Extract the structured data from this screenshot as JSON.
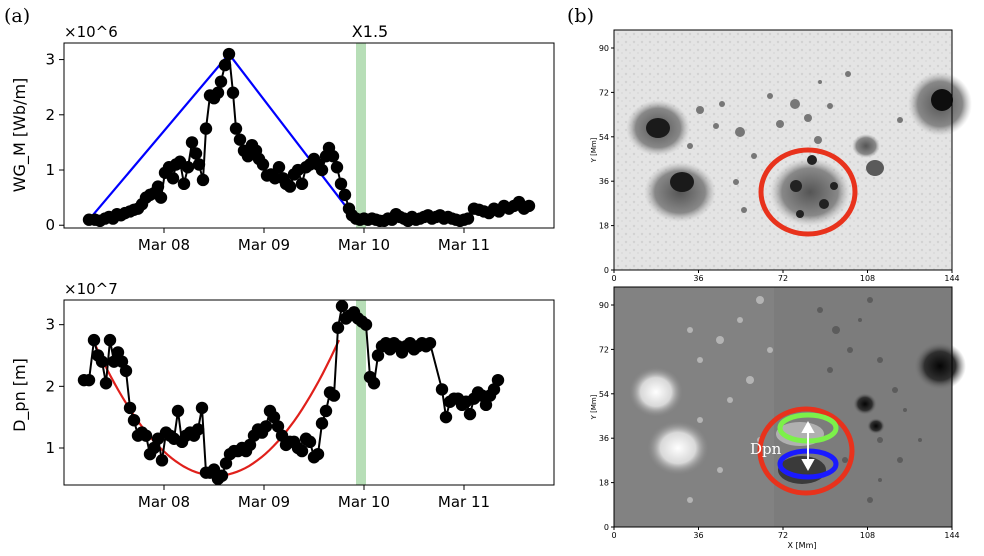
{
  "panels": {
    "a_label": "(a)",
    "b_label": "(b)"
  },
  "colors": {
    "data": "#000000",
    "fit_top": "#0000ff",
    "fit_bottom": "#e0201b",
    "flare_band": "#b7deb7",
    "circle_red": "#e8321c",
    "ellipse_green": "#7cf04a",
    "ellipse_blue": "#1a1aff"
  },
  "chart_data": [
    {
      "type": "scatter",
      "title": "X1.5",
      "ylabel": "WG_M [Wb/m]",
      "y_multiplier": "×10^6",
      "x_ticks": [
        "Mar 08",
        "Mar 09",
        "Mar 10",
        "Mar 11"
      ],
      "x_tick_values": [
        8,
        9,
        10,
        11
      ],
      "y_ticks": [
        "0",
        "1",
        "2",
        "3"
      ],
      "y_tick_values": [
        0,
        1,
        2,
        3
      ],
      "xlim": [
        7.0,
        11.9
      ],
      "ylim": [
        -0.05,
        3.3
      ],
      "flare_band": [
        9.92,
        10.02
      ],
      "series": [
        {
          "points": [
            [
              7.25,
              0.1
            ],
            [
              7.31,
              0.1
            ],
            [
              7.36,
              0.08
            ],
            [
              7.41,
              0.12
            ],
            [
              7.45,
              0.15
            ],
            [
              7.49,
              0.12
            ],
            [
              7.53,
              0.2
            ],
            [
              7.57,
              0.18
            ],
            [
              7.61,
              0.22
            ],
            [
              7.66,
              0.25
            ],
            [
              7.7,
              0.28
            ],
            [
              7.74,
              0.3
            ],
            [
              7.78,
              0.38
            ],
            [
              7.82,
              0.5
            ],
            [
              7.86,
              0.55
            ],
            [
              7.9,
              0.58
            ],
            [
              7.94,
              0.7
            ],
            [
              7.97,
              0.5
            ],
            [
              8.01,
              0.95
            ],
            [
              8.05,
              1.05
            ],
            [
              8.09,
              0.85
            ],
            [
              8.12,
              1.1
            ],
            [
              8.16,
              1.15
            ],
            [
              8.2,
              0.75
            ],
            [
              8.24,
              1.05
            ],
            [
              8.28,
              1.5
            ],
            [
              8.32,
              1.3
            ],
            [
              8.35,
              1.1
            ],
            [
              8.39,
              0.82
            ],
            [
              8.42,
              1.75
            ],
            [
              8.46,
              2.35
            ],
            [
              8.5,
              2.3
            ],
            [
              8.54,
              2.4
            ],
            [
              8.57,
              2.6
            ],
            [
              8.61,
              2.9
            ],
            [
              8.65,
              3.1
            ],
            [
              8.69,
              2.4
            ],
            [
              8.72,
              1.75
            ],
            [
              8.76,
              1.55
            ],
            [
              8.8,
              1.35
            ],
            [
              8.84,
              1.25
            ],
            [
              8.88,
              1.45
            ],
            [
              8.92,
              1.35
            ],
            [
              8.95,
              1.2
            ],
            [
              8.99,
              1.1
            ],
            [
              9.03,
              0.9
            ],
            [
              9.07,
              0.92
            ],
            [
              9.11,
              0.85
            ],
            [
              9.15,
              1.05
            ],
            [
              9.19,
              0.85
            ],
            [
              9.22,
              0.75
            ],
            [
              9.26,
              0.7
            ],
            [
              9.3,
              0.92
            ],
            [
              9.34,
              1.0
            ],
            [
              9.38,
              0.75
            ],
            [
              9.42,
              1.05
            ],
            [
              9.46,
              1.1
            ],
            [
              9.5,
              1.2
            ],
            [
              9.54,
              1.1
            ],
            [
              9.58,
              1.0
            ],
            [
              9.62,
              1.25
            ],
            [
              9.65,
              1.4
            ],
            [
              9.69,
              1.25
            ],
            [
              9.73,
              1.05
            ],
            [
              9.77,
              0.75
            ],
            [
              9.81,
              0.55
            ],
            [
              9.85,
              0.3
            ],
            [
              9.88,
              0.18
            ],
            [
              9.92,
              0.12
            ],
            [
              9.96,
              0.1
            ],
            [
              10.0,
              0.12
            ],
            [
              10.04,
              0.1
            ],
            [
              10.08,
              0.12
            ],
            [
              10.12,
              0.1
            ],
            [
              10.16,
              0.08
            ],
            [
              10.2,
              0.08
            ],
            [
              10.24,
              0.12
            ],
            [
              10.28,
              0.1
            ],
            [
              10.32,
              0.2
            ],
            [
              10.36,
              0.15
            ],
            [
              10.4,
              0.12
            ],
            [
              10.44,
              0.08
            ],
            [
              10.48,
              0.15
            ],
            [
              10.52,
              0.1
            ],
            [
              10.56,
              0.12
            ],
            [
              10.6,
              0.15
            ],
            [
              10.64,
              0.18
            ],
            [
              10.68,
              0.12
            ],
            [
              10.72,
              0.15
            ],
            [
              10.76,
              0.18
            ],
            [
              10.8,
              0.12
            ],
            [
              10.84,
              0.15
            ],
            [
              10.88,
              0.12
            ],
            [
              10.92,
              0.1
            ],
            [
              10.96,
              0.08
            ],
            [
              11.0,
              0.1
            ],
            [
              11.04,
              0.12
            ],
            [
              11.1,
              0.3
            ],
            [
              11.15,
              0.28
            ],
            [
              11.2,
              0.25
            ],
            [
              11.25,
              0.22
            ],
            [
              11.3,
              0.3
            ],
            [
              11.35,
              0.25
            ],
            [
              11.4,
              0.35
            ],
            [
              11.45,
              0.3
            ],
            [
              11.5,
              0.35
            ],
            [
              11.55,
              0.42
            ],
            [
              11.6,
              0.3
            ],
            [
              11.65,
              0.35
            ]
          ]
        }
      ],
      "fit_line": [
        [
          7.25,
          0.1
        ],
        [
          8.65,
          3.1
        ],
        [
          9.92,
          0.1
        ]
      ]
    },
    {
      "type": "scatter",
      "ylabel": "D_pn [m]",
      "y_multiplier": "×10^7",
      "x_ticks": [
        "Mar 08",
        "Mar 09",
        "Mar 10",
        "Mar 11"
      ],
      "x_tick_values": [
        8,
        9,
        10,
        11
      ],
      "y_ticks": [
        "1",
        "2",
        "3"
      ],
      "y_tick_values": [
        1,
        2,
        3
      ],
      "xlim": [
        7.0,
        11.9
      ],
      "ylim": [
        0.4,
        3.4
      ],
      "flare_band": [
        9.92,
        10.02
      ],
      "series": [
        {
          "points": [
            [
              7.2,
              2.1
            ],
            [
              7.25,
              2.1
            ],
            [
              7.3,
              2.75
            ],
            [
              7.34,
              2.5
            ],
            [
              7.38,
              2.4
            ],
            [
              7.42,
              2.05
            ],
            [
              7.46,
              2.75
            ],
            [
              7.5,
              2.4
            ],
            [
              7.54,
              2.55
            ],
            [
              7.58,
              2.4
            ],
            [
              7.62,
              2.25
            ],
            [
              7.66,
              1.65
            ],
            [
              7.7,
              1.45
            ],
            [
              7.74,
              1.2
            ],
            [
              7.78,
              1.25
            ],
            [
              7.82,
              1.2
            ],
            [
              7.86,
              0.9
            ],
            [
              7.9,
              1.0
            ],
            [
              7.94,
              1.15
            ],
            [
              7.98,
              0.8
            ],
            [
              8.02,
              1.25
            ],
            [
              8.06,
              1.2
            ],
            [
              8.1,
              1.15
            ],
            [
              8.14,
              1.6
            ],
            [
              8.18,
              1.1
            ],
            [
              8.22,
              1.2
            ],
            [
              8.26,
              1.25
            ],
            [
              8.3,
              1.2
            ],
            [
              8.34,
              1.3
            ],
            [
              8.38,
              1.65
            ],
            [
              8.42,
              0.6
            ],
            [
              8.46,
              0.6
            ],
            [
              8.5,
              0.65
            ],
            [
              8.54,
              0.5
            ],
            [
              8.58,
              0.55
            ],
            [
              8.62,
              0.75
            ],
            [
              8.66,
              0.9
            ],
            [
              8.7,
              0.95
            ],
            [
              8.74,
              0.95
            ],
            [
              8.78,
              1.0
            ],
            [
              8.82,
              0.95
            ],
            [
              8.86,
              1.05
            ],
            [
              8.9,
              1.2
            ],
            [
              8.94,
              1.3
            ],
            [
              8.98,
              1.25
            ],
            [
              9.02,
              1.35
            ],
            [
              9.06,
              1.6
            ],
            [
              9.1,
              1.5
            ],
            [
              9.14,
              1.35
            ],
            [
              9.18,
              1.2
            ],
            [
              9.22,
              1.05
            ],
            [
              9.26,
              1.1
            ],
            [
              9.3,
              1.1
            ],
            [
              9.34,
              1.0
            ],
            [
              9.38,
              0.95
            ],
            [
              9.42,
              1.15
            ],
            [
              9.46,
              1.1
            ],
            [
              9.5,
              0.85
            ],
            [
              9.54,
              0.9
            ],
            [
              9.58,
              1.4
            ],
            [
              9.62,
              1.6
            ],
            [
              9.66,
              1.9
            ],
            [
              9.7,
              1.85
            ],
            [
              9.74,
              2.95
            ],
            [
              9.78,
              3.3
            ],
            [
              9.82,
              3.1
            ],
            [
              9.86,
              3.15
            ],
            [
              9.9,
              3.2
            ],
            [
              9.94,
              3.1
            ],
            [
              9.98,
              3.05
            ],
            [
              10.02,
              3.0
            ],
            [
              10.06,
              2.15
            ],
            [
              10.1,
              2.05
            ],
            [
              10.14,
              2.5
            ],
            [
              10.18,
              2.65
            ],
            [
              10.22,
              2.7
            ],
            [
              10.26,
              2.6
            ],
            [
              10.3,
              2.7
            ],
            [
              10.34,
              2.65
            ],
            [
              10.38,
              2.55
            ],
            [
              10.42,
              2.65
            ],
            [
              10.46,
              2.7
            ],
            [
              10.5,
              2.6
            ],
            [
              10.54,
              2.65
            ],
            [
              10.58,
              2.7
            ],
            [
              10.62,
              2.65
            ],
            [
              10.66,
              2.7
            ],
            [
              10.78,
              1.95
            ],
            [
              10.82,
              1.5
            ],
            [
              10.86,
              1.75
            ],
            [
              10.9,
              1.8
            ],
            [
              10.94,
              1.8
            ],
            [
              10.98,
              1.7
            ],
            [
              11.02,
              1.75
            ],
            [
              11.06,
              1.55
            ],
            [
              11.1,
              1.8
            ],
            [
              11.14,
              1.9
            ],
            [
              11.18,
              1.85
            ],
            [
              11.22,
              1.7
            ],
            [
              11.26,
              1.85
            ],
            [
              11.3,
              1.95
            ],
            [
              11.34,
              2.1
            ]
          ]
        }
      ],
      "fit_curve": {
        "x_start": 7.3,
        "x_end": 9.75,
        "vertex_x": 8.52,
        "vertex_y": 0.55,
        "end_y": 2.75
      }
    }
  ],
  "image_panels": {
    "axis_ticks_x": [
      "0",
      "36",
      "72",
      "108",
      "144"
    ],
    "axis_ticks_y": [
      "0",
      "18",
      "36",
      "54",
      "72",
      "90"
    ],
    "ylabel": "Y [Mm]",
    "xlabel": "X [Mm]",
    "annotation": "Dpn"
  }
}
